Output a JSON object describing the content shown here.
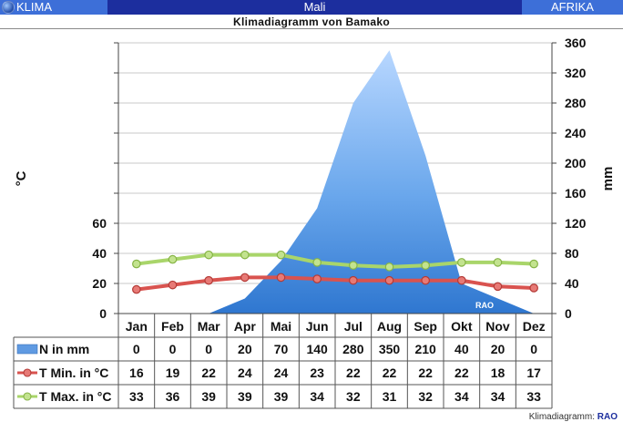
{
  "header": {
    "left_label": "KLIMA",
    "country": "Mali",
    "right_label": "AFRIKA",
    "subtitle": "Klimadiagramm von Bamako"
  },
  "footer": {
    "prefix": "Klimadiagramm:",
    "brand": "RAO"
  },
  "watermark": "RAO",
  "colors": {
    "header_bg": "#1c2e9e",
    "header_tab": "#3d6fd8",
    "precip_light": "#a9cdfb",
    "precip_dark": "#3a80d6",
    "tmin": "#d9534f",
    "tmax": "#a9d56a"
  },
  "chart_data": {
    "type": "line",
    "categories": [
      "Jan",
      "Feb",
      "Mar",
      "Apr",
      "Mai",
      "Jun",
      "Jul",
      "Aug",
      "Sep",
      "Okt",
      "Nov",
      "Dez"
    ],
    "series": [
      {
        "name": "N in mm",
        "kind": "area",
        "axis": "right",
        "values": [
          0,
          0,
          0,
          20,
          70,
          140,
          280,
          350,
          210,
          40,
          20,
          0
        ]
      },
      {
        "name": "T Min. in °C",
        "kind": "line",
        "axis": "left",
        "values": [
          16,
          19,
          22,
          24,
          24,
          23,
          22,
          22,
          22,
          22,
          18,
          17
        ]
      },
      {
        "name": "T Max. in °C",
        "kind": "line",
        "axis": "left",
        "values": [
          33,
          36,
          39,
          39,
          39,
          34,
          32,
          31,
          32,
          34,
          34,
          33
        ]
      }
    ],
    "ylabel_left": "°C",
    "ylabel_right": "mm",
    "left_ticks": [
      0,
      20,
      40,
      60
    ],
    "right_ticks": [
      0,
      40,
      80,
      120,
      160,
      200,
      240,
      280,
      320,
      360
    ],
    "ylim_left": [
      0,
      180
    ],
    "ylim_right": [
      0,
      360
    ],
    "grid": true,
    "data_table": true
  }
}
